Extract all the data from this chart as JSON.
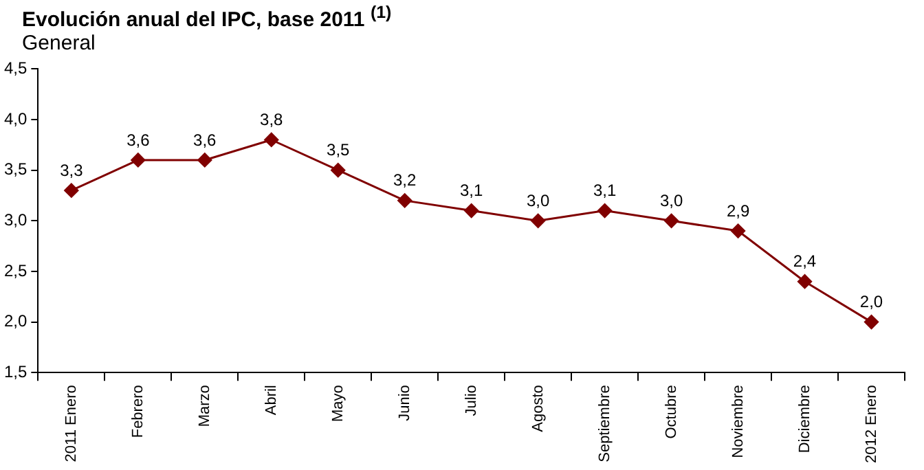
{
  "chart_data": {
    "type": "line",
    "title": "Evolución anual del IPC, base 2011 $^{(1)}$",
    "subtitle": "General",
    "categories": [
      "2011 Enero",
      "Febrero",
      "Marzo",
      "Abril",
      "Mayo",
      "Junio",
      "Julio",
      "Agosto",
      "Septiembre",
      "Octubre",
      "Noviembre",
      "Diciembre",
      "2012 Enero"
    ],
    "series": [
      {
        "color": "#800000",
        "values": [
          3.3,
          3.6,
          3.6,
          3.8,
          3.5,
          3.2,
          3.1,
          3.0,
          3.1,
          3.0,
          2.9,
          2.4,
          2.0
        ],
        "value_labels": [
          "3,3",
          "3,6",
          "3,6",
          "3,8",
          "3,5",
          "3,2",
          "3,1",
          "3,0",
          "3,1",
          "3,0",
          "2,9",
          "2,4",
          "2,0"
        ]
      }
    ],
    "ylim": [
      1.5,
      4.5
    ],
    "yticks": [
      {
        "value": 1.5,
        "label": "1,5"
      },
      {
        "value": 2.0,
        "label": "2,0"
      },
      {
        "value": 2.5,
        "label": "2,5"
      },
      {
        "value": 3.0,
        "label": "3,0"
      },
      {
        "value": 3.5,
        "label": "3,5"
      },
      {
        "value": 4.0,
        "label": "4,0"
      },
      {
        "value": 4.5,
        "label": "4,5"
      }
    ],
    "grid": false,
    "legend": false,
    "marker": "diamond",
    "line_style": "solid"
  }
}
